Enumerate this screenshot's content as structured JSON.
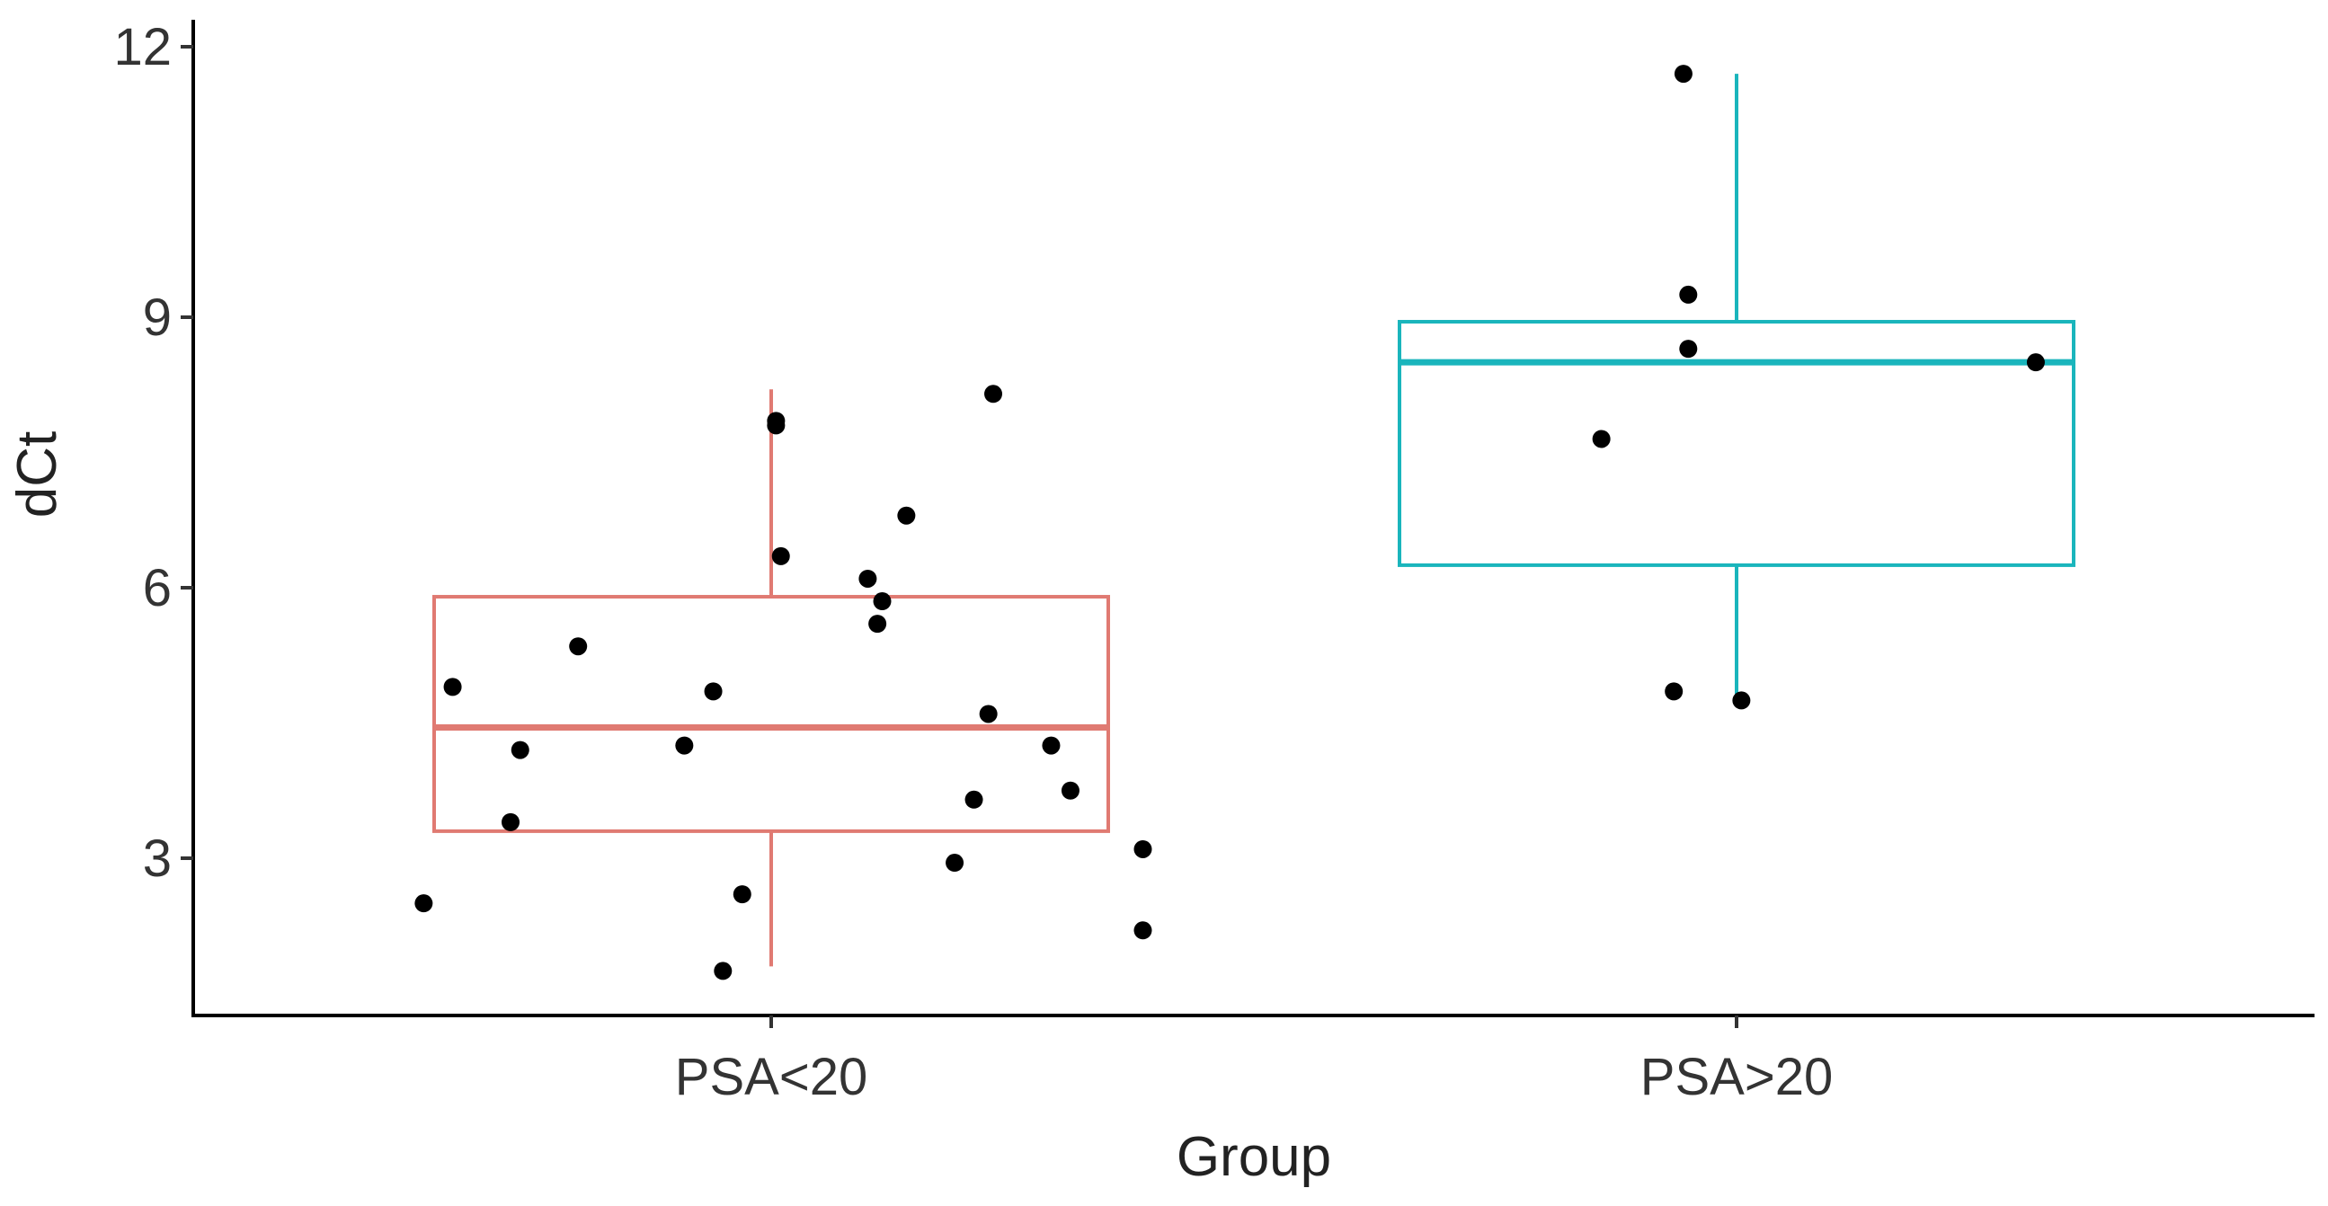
{
  "chart_data": {
    "type": "boxplot",
    "xlabel": "Group",
    "ylabel": "dCt",
    "ylim": [
      1.3,
      12.2
    ],
    "yticks": [
      3,
      6,
      9,
      12
    ],
    "categories": [
      "PSA<20",
      "PSA>20"
    ],
    "series": [
      {
        "name": "PSA<20",
        "color": "#E07A72",
        "box": {
          "whisker_low": 1.8,
          "q1": 3.3,
          "median": 4.45,
          "q3": 5.9,
          "whisker_high": 8.2
        },
        "points": [
          {
            "x": -0.36,
            "y": 2.5
          },
          {
            "x": -0.33,
            "y": 4.9
          },
          {
            "x": -0.27,
            "y": 3.4
          },
          {
            "x": -0.26,
            "y": 4.2
          },
          {
            "x": -0.2,
            "y": 5.35
          },
          {
            "x": -0.09,
            "y": 4.25
          },
          {
            "x": -0.06,
            "y": 4.85
          },
          {
            "x": -0.05,
            "y": 1.75
          },
          {
            "x": -0.03,
            "y": 2.6
          },
          {
            "x": 0.005,
            "y": 7.8
          },
          {
            "x": 0.005,
            "y": 7.85
          },
          {
            "x": 0.01,
            "y": 6.35
          },
          {
            "x": 0.1,
            "y": 6.1
          },
          {
            "x": 0.11,
            "y": 5.6
          },
          {
            "x": 0.115,
            "y": 5.85
          },
          {
            "x": 0.14,
            "y": 6.8
          },
          {
            "x": 0.19,
            "y": 2.95
          },
          {
            "x": 0.21,
            "y": 3.65
          },
          {
            "x": 0.225,
            "y": 4.6
          },
          {
            "x": 0.23,
            "y": 8.15
          },
          {
            "x": 0.29,
            "y": 4.25
          },
          {
            "x": 0.31,
            "y": 3.75
          },
          {
            "x": 0.385,
            "y": 3.1
          },
          {
            "x": 0.385,
            "y": 2.2
          }
        ]
      },
      {
        "name": "PSA>20",
        "color": "#1AB5BC",
        "box": {
          "whisker_low": 4.75,
          "q1": 6.25,
          "median": 8.5,
          "q3": 8.95,
          "whisker_high": 11.7
        },
        "points": [
          {
            "x": -0.14,
            "y": 7.65
          },
          {
            "x": -0.065,
            "y": 4.85
          },
          {
            "x": -0.055,
            "y": 11.7
          },
          {
            "x": -0.05,
            "y": 9.25
          },
          {
            "x": -0.05,
            "y": 8.65
          },
          {
            "x": 0.005,
            "y": 4.75
          },
          {
            "x": 0.31,
            "y": 8.5
          }
        ]
      }
    ]
  }
}
